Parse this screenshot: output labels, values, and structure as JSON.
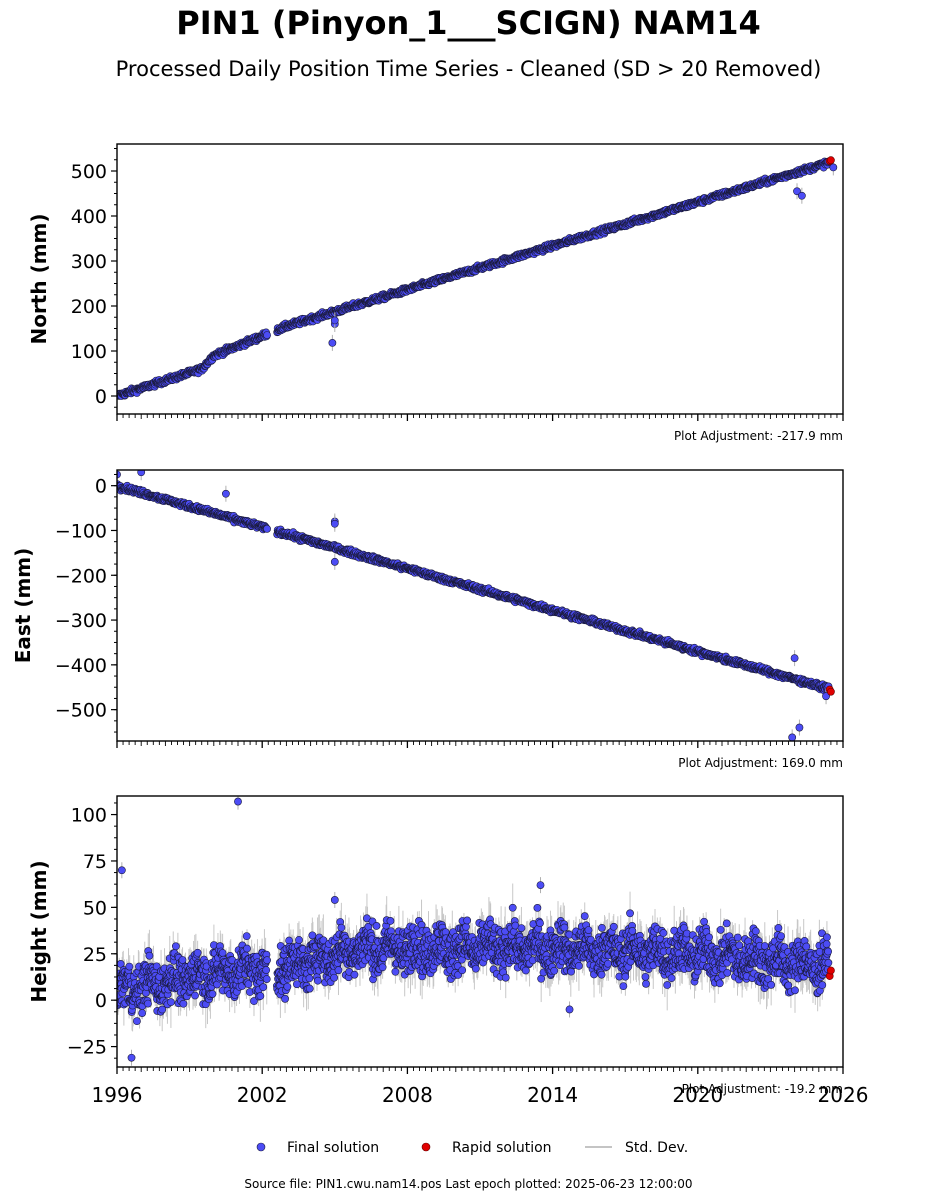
{
  "title": "PIN1 (Pinyon_1___SCIGN) NAM14",
  "subtitle": "Processed Daily Position Time Series - Cleaned (SD > 20 Removed)",
  "legend": {
    "final": "Final solution",
    "rapid": "Rapid solution",
    "std": "Std. Dev."
  },
  "footer": "Source file: PIN1.cwu.nam14.pos  Last epoch plotted: 2025-06-23 12:00:00",
  "colors": {
    "final_fill": "#4c4cf5",
    "final_edge": "#1a1a3a",
    "rapid_fill": "#e00000",
    "std_line": "#b0b0b0"
  },
  "chart_data": [
    {
      "type": "scatter",
      "component": "north",
      "ylabel": "North (mm)",
      "adjustment": "Plot Adjustment: -217.9 mm",
      "xlim": [
        1996,
        2026
      ],
      "ylim": [
        -40,
        560
      ],
      "yticks": [
        0,
        100,
        200,
        300,
        400,
        500
      ],
      "trend": [
        [
          1996.0,
          0
        ],
        [
          1999.5,
          60
        ],
        [
          2000.0,
          90
        ],
        [
          2003.0,
          155
        ],
        [
          2025.5,
          520
        ]
      ],
      "noise": 4,
      "outliers": [
        [
          2004.9,
          118
        ],
        [
          2005.0,
          160
        ],
        [
          2005.0,
          168
        ],
        [
          2024.1,
          455
        ],
        [
          2024.3,
          445
        ],
        [
          2025.6,
          508
        ]
      ],
      "rapid": [
        [
          2025.45,
          522
        ],
        [
          2025.5,
          524
        ]
      ]
    },
    {
      "type": "scatter",
      "component": "east",
      "ylabel": "East (mm)",
      "adjustment": "Plot Adjustment: 169.0 mm",
      "xlim": [
        1996,
        2026
      ],
      "ylim": [
        -570,
        35
      ],
      "yticks": [
        0,
        -100,
        -200,
        -300,
        -400,
        -500
      ],
      "trend": [
        [
          1996.0,
          0
        ],
        [
          2025.5,
          -455
        ]
      ],
      "noise": 4,
      "outliers": [
        [
          1996.0,
          25
        ],
        [
          1997.0,
          30
        ],
        [
          2000.5,
          -18
        ],
        [
          2005.0,
          -80
        ],
        [
          2005.0,
          -85
        ],
        [
          2005.0,
          -170
        ],
        [
          2024.0,
          -385
        ],
        [
          2024.2,
          -540
        ],
        [
          2023.9,
          -562
        ],
        [
          2025.3,
          -470
        ]
      ],
      "rapid": [
        [
          2025.45,
          -455
        ],
        [
          2025.5,
          -460
        ]
      ]
    },
    {
      "type": "scatter",
      "component": "height",
      "ylabel": "Height (mm)",
      "adjustment": "Plot Adjustment: -19.2 mm",
      "xlim": [
        1996,
        2026
      ],
      "ylim": [
        -36,
        110
      ],
      "yticks": [
        -25,
        0,
        25,
        50,
        75,
        100
      ],
      "xticks": [
        1996,
        2002,
        2008,
        2014,
        2020,
        2026
      ],
      "trend": [
        [
          1996.0,
          5
        ],
        [
          2000.0,
          15
        ],
        [
          2003.0,
          18
        ],
        [
          2006.0,
          28
        ],
        [
          2014.0,
          28
        ],
        [
          2020.0,
          25
        ],
        [
          2025.5,
          18
        ]
      ],
      "noise": 9,
      "outliers": [
        [
          1996.2,
          70
        ],
        [
          2001.0,
          107
        ],
        [
          1996.6,
          -31
        ],
        [
          2014.7,
          -5
        ],
        [
          2005.0,
          54
        ],
        [
          2013.5,
          62
        ]
      ],
      "rapid": [
        [
          2025.45,
          13
        ],
        [
          2025.5,
          16
        ]
      ]
    }
  ]
}
